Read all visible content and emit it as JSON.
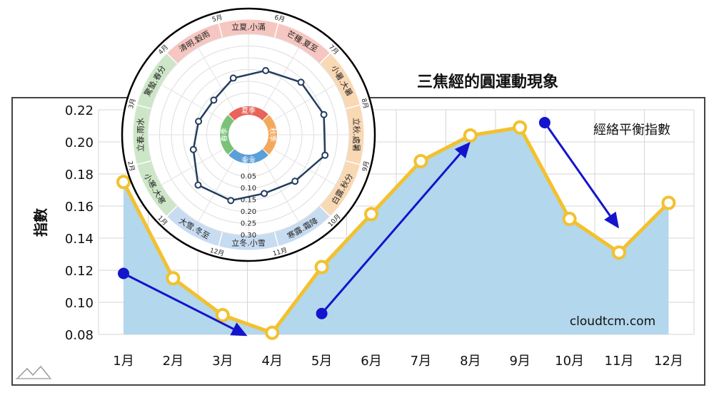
{
  "chart_data": [
    {
      "type": "area",
      "title": "三焦經的圓運動現象",
      "ylabel": "指數",
      "xlabel": "",
      "categories": [
        "1月",
        "2月",
        "3月",
        "4月",
        "5月",
        "6月",
        "7月",
        "8月",
        "9月",
        "10月",
        "11月",
        "12月"
      ],
      "series": [
        {
          "name": "經絡平衡指數",
          "values": [
            0.175,
            0.115,
            0.092,
            0.081,
            0.122,
            0.155,
            0.188,
            0.204,
            0.209,
            0.152,
            0.131,
            0.162
          ]
        }
      ],
      "ylim": [
        0.08,
        0.22
      ],
      "yticks": [
        0.08,
        0.1,
        0.12,
        0.14,
        0.16,
        0.18,
        0.2,
        0.22
      ],
      "grid": true,
      "legend": "top-right",
      "watermark": "cloudtcm.com",
      "trend_arrows": [
        {
          "from": [
            1,
            0.118
          ],
          "to": [
            3.5,
            0.079
          ]
        },
        {
          "from": [
            5,
            0.093
          ],
          "to": [
            8,
            0.2
          ]
        },
        {
          "from": [
            9.5,
            0.212
          ],
          "to": [
            11,
            0.146
          ]
        }
      ],
      "colors": {
        "line": "#f2c12e",
        "area": "#b3d7ec",
        "arrow": "#1414cc",
        "axis_text": "#111111"
      }
    },
    {
      "type": "radar",
      "month_labels": [
        "5月",
        "6月",
        "7月",
        "8月",
        "9月",
        "10月",
        "11月",
        "12月",
        "1月",
        "2月",
        "3月",
        "4月"
      ],
      "solar_terms": [
        "立夏.小滿",
        "芒種.夏至",
        "小暑.大暑",
        "立秋.處暑",
        "白露.秋分",
        "寒露.霜降",
        "立冬.小雪",
        "大雪.冬至",
        "小寒.大寒",
        "立春.雨水",
        "驚蟄.春分",
        "清明.穀雨"
      ],
      "season_labels": [
        "夏季",
        "秋季",
        "冬季",
        "春季"
      ],
      "rticks": [
        0.05,
        0.1,
        0.15,
        0.2,
        0.25,
        0.3
      ],
      "rlim": [
        0,
        0.3
      ],
      "values": [
        0.122,
        0.155,
        0.188,
        0.204,
        0.209,
        0.152,
        0.131,
        0.162,
        0.175,
        0.115,
        0.092,
        0.081
      ],
      "colors": {
        "summer": "#e8635b",
        "autumn": "#f3a95c",
        "winter": "#5b9fd8",
        "spring": "#7bc278",
        "summer_band": "#f6c6c1",
        "autumn_band": "#f9d8b4",
        "winter_band": "#c7dcf1",
        "spring_band": "#cde6c7",
        "line": "#233d5e"
      }
    }
  ]
}
